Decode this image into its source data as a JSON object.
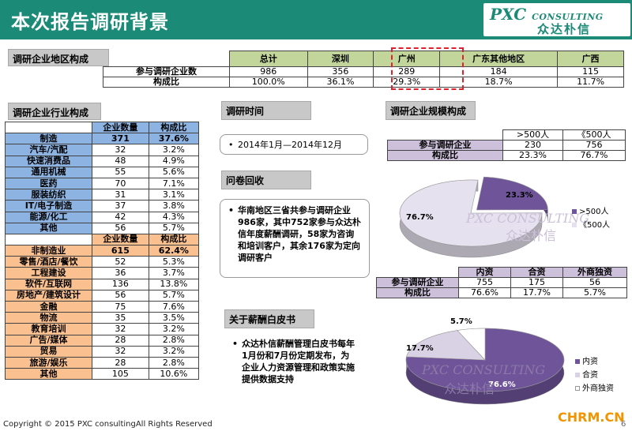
{
  "header": {
    "title": "本次报告调研背景",
    "logo_en": "PXC",
    "logo_en_small": "CONSULTING",
    "logo_cn": "众达朴信"
  },
  "region": {
    "label": "调研企业地区构成",
    "columns": [
      "总计",
      "深圳",
      "广州",
      "广东其他地区",
      "广西"
    ],
    "rows": [
      {
        "name": "参与调研企业数",
        "values": [
          "986",
          "356",
          "289",
          "184",
          "115"
        ]
      },
      {
        "name": "构成比",
        "values": [
          "100.0%",
          "36.1%",
          "29.3%",
          "18.7%",
          "11.7%"
        ]
      }
    ]
  },
  "industry": {
    "label": "调研企业行业构成",
    "head1": [
      "企业数量",
      "构成比"
    ],
    "mfg": {
      "name": "制造",
      "count": "371",
      "pct": "37.6%"
    },
    "mfg_items": [
      {
        "name": "汽车/汽配",
        "count": "32",
        "pct": "3.2%"
      },
      {
        "name": "快速消费品",
        "count": "48",
        "pct": "4.9%"
      },
      {
        "name": "通用机械",
        "count": "55",
        "pct": "5.6%"
      },
      {
        "name": "医药",
        "count": "70",
        "pct": "7.1%"
      },
      {
        "name": "服装纺织",
        "count": "31",
        "pct": "3.1%"
      },
      {
        "name": "IT/电子制造",
        "count": "37",
        "pct": "3.8%"
      },
      {
        "name": "能源/化工",
        "count": "42",
        "pct": "4.3%"
      },
      {
        "name": "其他",
        "count": "56",
        "pct": "5.7%"
      }
    ],
    "head2": [
      "企业数量",
      "构成比"
    ],
    "nonmfg": {
      "name": "非制造业",
      "count": "615",
      "pct": "62.4%"
    },
    "nonmfg_items": [
      {
        "name": "零售/酒店/餐饮",
        "count": "52",
        "pct": "5.3%"
      },
      {
        "name": "工程建设",
        "count": "36",
        "pct": "3.7%"
      },
      {
        "name": "软件/互联网",
        "count": "136",
        "pct": "13.8%"
      },
      {
        "name": "房地产/建筑设计",
        "count": "56",
        "pct": "5.7%"
      },
      {
        "name": "金融",
        "count": "75",
        "pct": "7.6%"
      },
      {
        "name": "物流",
        "count": "35",
        "pct": "3.5%"
      },
      {
        "name": "教育培训",
        "count": "32",
        "pct": "3.2%"
      },
      {
        "name": "广告/媒体",
        "count": "28",
        "pct": "2.8%"
      },
      {
        "name": "贸易",
        "count": "32",
        "pct": "3.2%"
      },
      {
        "name": "旅游/娱乐",
        "count": "28",
        "pct": "2.8%"
      },
      {
        "name": "其他",
        "count": "105",
        "pct": "10.6%"
      }
    ]
  },
  "time": {
    "label": "调研时间",
    "text": "2014年1月—2014年12月"
  },
  "questionnaire": {
    "label": "问卷回收",
    "text": "华南地区三省共参与调研企业986家，其中752家参与众达朴信年度薪酬调研，58家为咨询和培训客户，其余176家为定向调研客户"
  },
  "whitepaper": {
    "label": "关于薪酬白皮书",
    "text": "众达朴信薪酬管理白皮书每年1月份和7月份定期发布，为企业人力资源管理和政策实施提供数据支持"
  },
  "scale": {
    "label": "调研企业规模构成",
    "columns": [
      ">500人",
      "《500人"
    ],
    "rows": [
      {
        "name": "参与调研企业",
        "values": [
          "230",
          "756"
        ]
      },
      {
        "name": "构成比",
        "values": [
          "23.3%",
          "76.7%"
        ]
      }
    ]
  },
  "ownership": {
    "columns": [
      "内资",
      "合资",
      "外商独资"
    ],
    "rows": [
      {
        "name": "参与调研企业",
        "values": [
          "755",
          "175",
          "56"
        ]
      },
      {
        "name": "构成比",
        "values": [
          "76.6%",
          "17.7%",
          "5.7%"
        ]
      }
    ]
  },
  "chart_data": [
    {
      "type": "pie",
      "categories": [
        ">500人",
        "《500人"
      ],
      "values": [
        23.3,
        76.7
      ],
      "labels": [
        "23.3%",
        "76.7%"
      ],
      "colors": [
        "#6f5499",
        "#e6e1ee"
      ],
      "legend": "right"
    },
    {
      "type": "pie",
      "categories": [
        "内资",
        "合资",
        "外商独资"
      ],
      "values": [
        76.6,
        17.7,
        5.7
      ],
      "labels": [
        "76.6%",
        "17.7%",
        "5.7%"
      ],
      "colors": [
        "#6f5499",
        "#d9d2e4",
        "#ffffff"
      ],
      "legend": "right"
    }
  ],
  "watermark": {
    "en": "PXC CONSULTING",
    "cn": "众达朴信"
  },
  "footer": {
    "copyright": "Copyright © 2015 PXC consultingAll Rights Reserved",
    "site": "CHRM.CN",
    "page": "6"
  }
}
